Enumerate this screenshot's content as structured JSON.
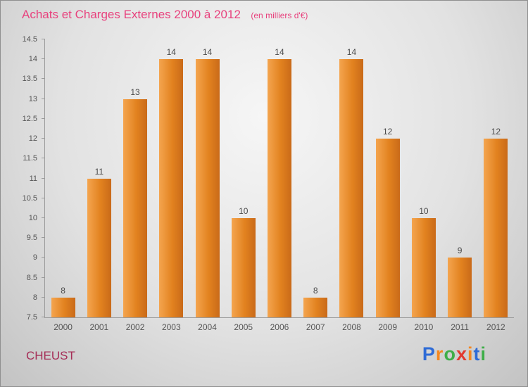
{
  "header": {
    "title": "Achats et Charges Externes 2000 à 2012",
    "subtitle": "(en milliers d'€)"
  },
  "footer": {
    "location": "CHEUST",
    "location_color": "#a52e57",
    "logo": {
      "text": "Proxiti",
      "letters": [
        {
          "char": "P",
          "color": "#2e6bd6"
        },
        {
          "char": "r",
          "color": "#f5871f"
        },
        {
          "char": "o",
          "color": "#3fae49"
        },
        {
          "char": "x",
          "color": "#e23a2e"
        },
        {
          "char": "i",
          "color": "#f5871f"
        },
        {
          "char": "t",
          "color": "#2e6bd6"
        },
        {
          "char": "i",
          "color": "#3fae49"
        }
      ]
    }
  },
  "chart_data": {
    "type": "bar",
    "title": "Achats et Charges Externes 2000 à 2012",
    "subtitle": "(en milliers d'€)",
    "categories": [
      "2000",
      "2001",
      "2002",
      "2003",
      "2004",
      "2005",
      "2006",
      "2007",
      "2008",
      "2009",
      "2010",
      "2011",
      "2012"
    ],
    "values": [
      8,
      11,
      13,
      14,
      14,
      10,
      14,
      8,
      14,
      12,
      10,
      9,
      12
    ],
    "xlabel": "",
    "ylabel": "",
    "ylim": [
      7.5,
      14.5
    ],
    "ytick_step": 0.5,
    "grid": false,
    "legend": false,
    "bar_gradient": [
      "#f4a54f",
      "#e2821f",
      "#c96a19"
    ],
    "value_label_color": "#4a4a4a",
    "axis_color": "#9a9a9a",
    "tick_label_color": "#555555",
    "title_color": "#e8417d"
  }
}
